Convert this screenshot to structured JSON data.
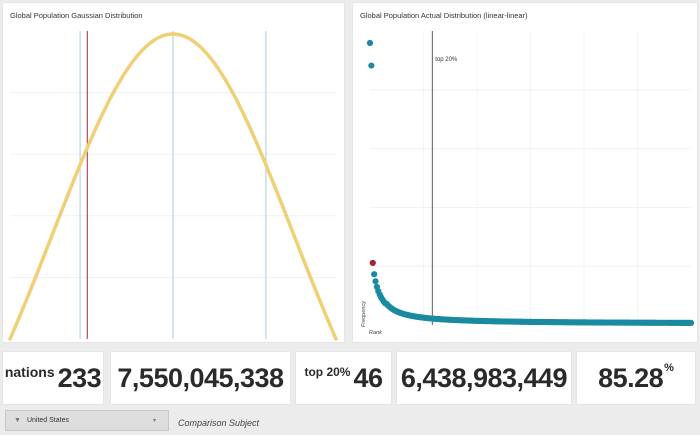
{
  "left_chart": {
    "title": "Global Population Gaussian Distribution",
    "chart_data": {
      "type": "line",
      "title": "Global Population Gaussian Distribution",
      "curve": "gaussian",
      "curve_color": "#f0cf76",
      "reference_lines": [
        {
          "kind": "blue",
          "position": 0.215,
          "color": "#a9cbe6"
        },
        {
          "kind": "red",
          "position": 0.237,
          "color": "#9e2a37"
        },
        {
          "kind": "blue",
          "position": 0.5,
          "color": "#a9cbe6"
        },
        {
          "kind": "blue",
          "position": 0.785,
          "color": "#a9cbe6"
        }
      ],
      "grid": true
    }
  },
  "right_chart": {
    "title": "Global Population Actual Distribution (linear-linear)",
    "annotation": "top 20%",
    "ylabel": "Frequency",
    "xlabel": "Rank",
    "chart_data": {
      "type": "scatter",
      "title": "Global Population Actual Distribution (linear-linear)",
      "xlabel": "Rank",
      "ylabel": "Frequency",
      "point_color": "#1a8aa0",
      "highlight_color": "#a3232c",
      "n_points": 233,
      "top20_rank": 46,
      "highlight_rank": 3,
      "leading_values_fraction_of_max": [
        1.0,
        0.92,
        0.22,
        0.18,
        0.155,
        0.135,
        0.12,
        0.108,
        0.098,
        0.09,
        0.083,
        0.077
      ],
      "tail_decay": "power-law",
      "grid": true
    }
  },
  "stats": {
    "nations_label": "nations",
    "nations_value": "233",
    "total_population": "7,550,045,338",
    "top_label": "top 20%",
    "top_count": "46",
    "top_population": "6,438,983,449",
    "top_share": "85.28",
    "top_share_unit": "%"
  },
  "filter": {
    "value": "United States",
    "icon": "filter-icon",
    "caption": "Comparison Subject"
  }
}
